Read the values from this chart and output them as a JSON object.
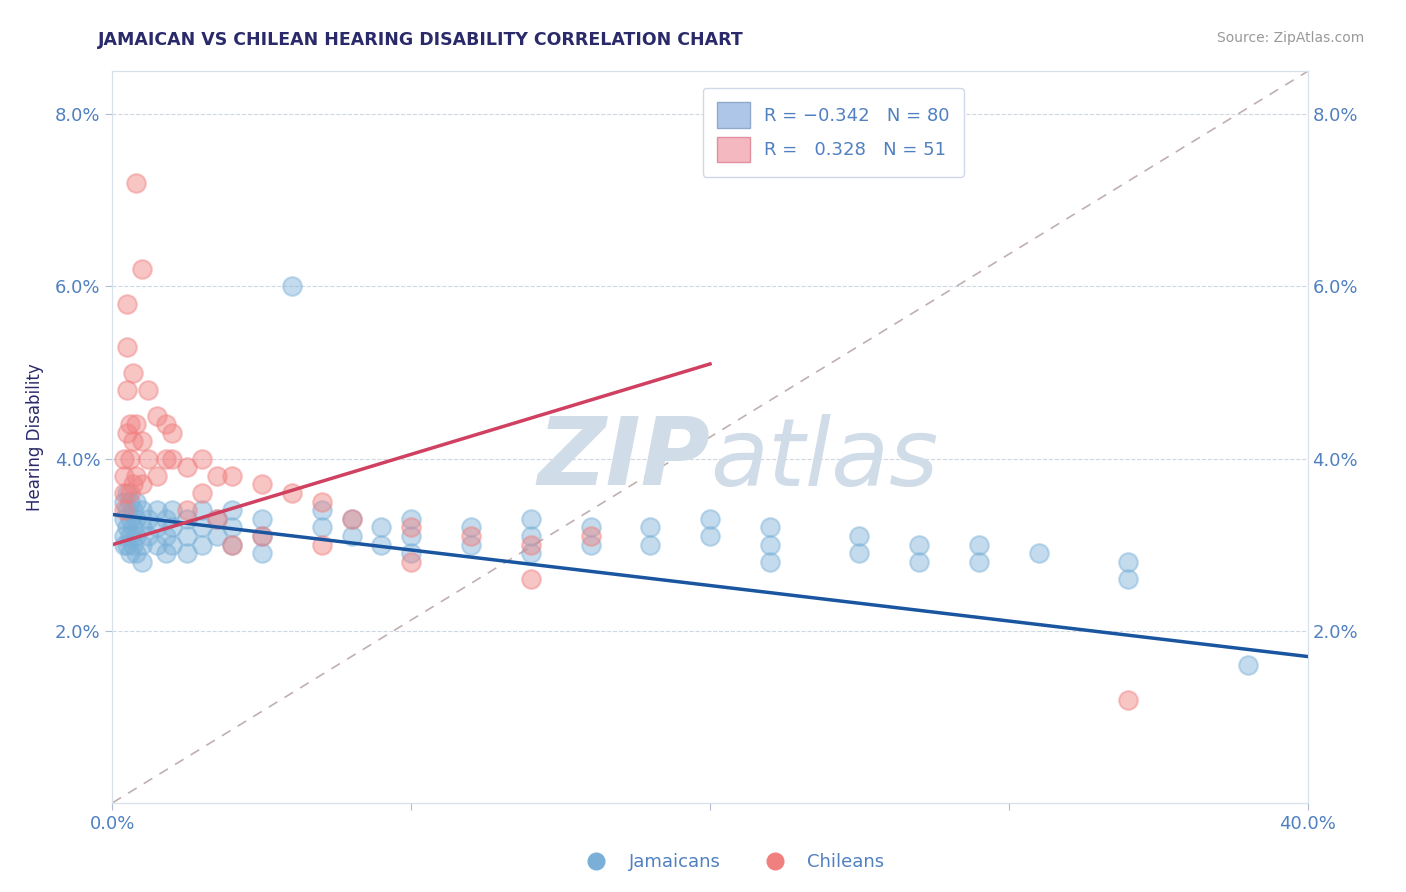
{
  "title": "JAMAICAN VS CHILEAN HEARING DISABILITY CORRELATION CHART",
  "source_text": "Source: ZipAtlas.com",
  "ylabel": "Hearing Disability",
  "xlim": [
    0.0,
    0.4
  ],
  "ylim": [
    0.0,
    0.085
  ],
  "yticks": [
    0.02,
    0.04,
    0.06,
    0.08
  ],
  "ytick_labels": [
    "2.0%",
    "4.0%",
    "6.0%",
    "8.0%"
  ],
  "xticks": [
    0.0,
    0.1,
    0.2,
    0.3,
    0.4
  ],
  "xtick_labels": [
    "0.0%",
    "",
    "",
    "",
    "40.0%"
  ],
  "jamaican_color": "#7ab0d8",
  "chilean_color": "#f08080",
  "trend_blue_color": "#1a55a0",
  "trend_pink_color": "#d04060",
  "trend_dashed_color": "#c0b0b0",
  "background_color": "#ffffff",
  "watermark_color": "#d0dce8",
  "title_color": "#2a2a6a",
  "axis_color": "#5080c0",
  "tick_color": "#5080c0",
  "jamaican_scatter": [
    [
      0.004,
      0.033
    ],
    [
      0.004,
      0.031
    ],
    [
      0.004,
      0.035
    ],
    [
      0.004,
      0.03
    ],
    [
      0.005,
      0.034
    ],
    [
      0.005,
      0.032
    ],
    [
      0.005,
      0.036
    ],
    [
      0.005,
      0.03
    ],
    [
      0.006,
      0.033
    ],
    [
      0.006,
      0.031
    ],
    [
      0.006,
      0.035
    ],
    [
      0.006,
      0.029
    ],
    [
      0.007,
      0.034
    ],
    [
      0.007,
      0.032
    ],
    [
      0.007,
      0.03
    ],
    [
      0.008,
      0.033
    ],
    [
      0.008,
      0.031
    ],
    [
      0.008,
      0.035
    ],
    [
      0.008,
      0.029
    ],
    [
      0.01,
      0.034
    ],
    [
      0.01,
      0.032
    ],
    [
      0.01,
      0.03
    ],
    [
      0.01,
      0.028
    ],
    [
      0.012,
      0.033
    ],
    [
      0.012,
      0.031
    ],
    [
      0.015,
      0.034
    ],
    [
      0.015,
      0.032
    ],
    [
      0.015,
      0.03
    ],
    [
      0.018,
      0.033
    ],
    [
      0.018,
      0.031
    ],
    [
      0.018,
      0.029
    ],
    [
      0.02,
      0.034
    ],
    [
      0.02,
      0.032
    ],
    [
      0.02,
      0.03
    ],
    [
      0.025,
      0.033
    ],
    [
      0.025,
      0.031
    ],
    [
      0.025,
      0.029
    ],
    [
      0.03,
      0.034
    ],
    [
      0.03,
      0.032
    ],
    [
      0.03,
      0.03
    ],
    [
      0.035,
      0.033
    ],
    [
      0.035,
      0.031
    ],
    [
      0.04,
      0.034
    ],
    [
      0.04,
      0.032
    ],
    [
      0.04,
      0.03
    ],
    [
      0.05,
      0.033
    ],
    [
      0.05,
      0.031
    ],
    [
      0.05,
      0.029
    ],
    [
      0.06,
      0.06
    ],
    [
      0.07,
      0.034
    ],
    [
      0.07,
      0.032
    ],
    [
      0.08,
      0.033
    ],
    [
      0.08,
      0.031
    ],
    [
      0.09,
      0.032
    ],
    [
      0.09,
      0.03
    ],
    [
      0.1,
      0.033
    ],
    [
      0.1,
      0.031
    ],
    [
      0.1,
      0.029
    ],
    [
      0.12,
      0.032
    ],
    [
      0.12,
      0.03
    ],
    [
      0.14,
      0.033
    ],
    [
      0.14,
      0.031
    ],
    [
      0.14,
      0.029
    ],
    [
      0.16,
      0.032
    ],
    [
      0.16,
      0.03
    ],
    [
      0.18,
      0.032
    ],
    [
      0.18,
      0.03
    ],
    [
      0.2,
      0.033
    ],
    [
      0.2,
      0.031
    ],
    [
      0.22,
      0.032
    ],
    [
      0.22,
      0.03
    ],
    [
      0.22,
      0.028
    ],
    [
      0.25,
      0.031
    ],
    [
      0.25,
      0.029
    ],
    [
      0.27,
      0.03
    ],
    [
      0.27,
      0.028
    ],
    [
      0.29,
      0.03
    ],
    [
      0.29,
      0.028
    ],
    [
      0.31,
      0.029
    ],
    [
      0.34,
      0.028
    ],
    [
      0.34,
      0.026
    ],
    [
      0.38,
      0.016
    ]
  ],
  "chilean_scatter": [
    [
      0.004,
      0.034
    ],
    [
      0.004,
      0.036
    ],
    [
      0.004,
      0.038
    ],
    [
      0.004,
      0.04
    ],
    [
      0.005,
      0.043
    ],
    [
      0.005,
      0.048
    ],
    [
      0.005,
      0.053
    ],
    [
      0.005,
      0.058
    ],
    [
      0.006,
      0.036
    ],
    [
      0.006,
      0.04
    ],
    [
      0.006,
      0.044
    ],
    [
      0.007,
      0.037
    ],
    [
      0.007,
      0.042
    ],
    [
      0.007,
      0.05
    ],
    [
      0.008,
      0.038
    ],
    [
      0.008,
      0.044
    ],
    [
      0.008,
      0.072
    ],
    [
      0.01,
      0.037
    ],
    [
      0.01,
      0.042
    ],
    [
      0.01,
      0.062
    ],
    [
      0.012,
      0.04
    ],
    [
      0.012,
      0.048
    ],
    [
      0.015,
      0.038
    ],
    [
      0.015,
      0.045
    ],
    [
      0.018,
      0.04
    ],
    [
      0.018,
      0.044
    ],
    [
      0.02,
      0.04
    ],
    [
      0.02,
      0.043
    ],
    [
      0.025,
      0.039
    ],
    [
      0.025,
      0.034
    ],
    [
      0.03,
      0.04
    ],
    [
      0.03,
      0.036
    ],
    [
      0.035,
      0.038
    ],
    [
      0.035,
      0.033
    ],
    [
      0.04,
      0.038
    ],
    [
      0.04,
      0.03
    ],
    [
      0.05,
      0.037
    ],
    [
      0.05,
      0.031
    ],
    [
      0.06,
      0.036
    ],
    [
      0.07,
      0.035
    ],
    [
      0.07,
      0.03
    ],
    [
      0.08,
      0.033
    ],
    [
      0.1,
      0.032
    ],
    [
      0.1,
      0.028
    ],
    [
      0.12,
      0.031
    ],
    [
      0.14,
      0.03
    ],
    [
      0.14,
      0.026
    ],
    [
      0.16,
      0.031
    ],
    [
      0.34,
      0.012
    ]
  ]
}
